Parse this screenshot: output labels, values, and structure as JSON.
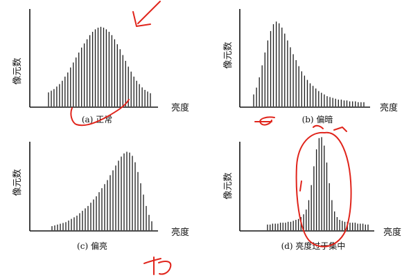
{
  "figure": {
    "panels": [
      {
        "id": "a",
        "caption": "(a) 正常",
        "ylabel": "像元数",
        "xlabel": "亮度"
      },
      {
        "id": "b",
        "caption": "(b) 偏暗",
        "ylabel": "像元数",
        "xlabel": "亮度"
      },
      {
        "id": "c",
        "caption": "(c) 偏亮",
        "ylabel": "像元数",
        "xlabel": "亮度"
      },
      {
        "id": "d",
        "caption": "(d) 亮度过于集中",
        "ylabel": "像元数",
        "xlabel": "亮度"
      }
    ]
  },
  "chart_data": [
    {
      "type": "bar",
      "title": "(a) 正常",
      "xlabel": "亮度",
      "ylabel": "像元数",
      "x_range": [
        0,
        1
      ],
      "ylim": [
        0,
        1
      ],
      "series": [
        {
          "values": [
            0.17,
            0.19,
            0.21,
            0.24,
            0.27,
            0.31,
            0.36,
            0.41,
            0.47,
            0.53,
            0.59,
            0.65,
            0.71,
            0.76,
            0.81,
            0.86,
            0.9,
            0.93,
            0.95,
            0.96,
            0.95,
            0.93,
            0.9,
            0.86,
            0.81,
            0.75,
            0.69,
            0.62,
            0.55,
            0.48,
            0.42,
            0.36,
            0.31,
            0.27,
            0.23,
            0.2,
            0.18,
            0.16
          ]
        }
      ]
    },
    {
      "type": "bar",
      "title": "(b) 偏暗",
      "xlabel": "亮度",
      "ylabel": "像元数",
      "x_range": [
        0,
        1
      ],
      "ylim": [
        0,
        1
      ],
      "series": [
        {
          "values": [
            0.14,
            0.22,
            0.34,
            0.48,
            0.63,
            0.77,
            0.88,
            0.96,
            0.99,
            0.97,
            0.92,
            0.85,
            0.77,
            0.69,
            0.61,
            0.54,
            0.47,
            0.41,
            0.36,
            0.31,
            0.27,
            0.24,
            0.21,
            0.18,
            0.16,
            0.14,
            0.12,
            0.11,
            0.1,
            0.09,
            0.08,
            0.08,
            0.07,
            0.07,
            0.06,
            0.06,
            0.06,
            0.05,
            0.05,
            0.05
          ]
        }
      ]
    },
    {
      "type": "bar",
      "title": "(c) 偏亮",
      "xlabel": "亮度",
      "ylabel": "像元数",
      "x_range": [
        0,
        1
      ],
      "ylim": [
        0,
        1
      ],
      "series": [
        {
          "values": [
            0.05,
            0.06,
            0.07,
            0.08,
            0.09,
            0.1,
            0.12,
            0.14,
            0.16,
            0.18,
            0.21,
            0.24,
            0.27,
            0.3,
            0.34,
            0.38,
            0.42,
            0.47,
            0.52,
            0.57,
            0.62,
            0.68,
            0.74,
            0.8,
            0.86,
            0.91,
            0.95,
            0.97,
            0.96,
            0.92,
            0.84,
            0.72,
            0.58,
            0.44,
            0.3,
            0.19,
            0.11
          ]
        }
      ]
    },
    {
      "type": "bar",
      "title": "(d) 亮度过于集中",
      "xlabel": "亮度",
      "ylabel": "像元数",
      "x_range": [
        0,
        1
      ],
      "ylim": [
        0,
        1
      ],
      "series": [
        {
          "values": [
            0.06,
            0.06,
            0.07,
            0.07,
            0.07,
            0.08,
            0.08,
            0.08,
            0.09,
            0.09,
            0.1,
            0.11,
            0.12,
            0.14,
            0.17,
            0.22,
            0.32,
            0.48,
            0.68,
            0.86,
            0.98,
            0.99,
            0.9,
            0.72,
            0.5,
            0.32,
            0.2,
            0.14,
            0.11,
            0.1,
            0.09,
            0.09,
            0.08,
            0.08,
            0.08,
            0.07,
            0.07,
            0.07,
            0.06,
            0.06
          ]
        }
      ]
    }
  ]
}
